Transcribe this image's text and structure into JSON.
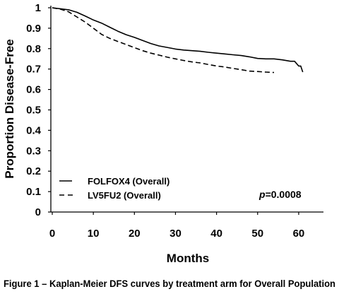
{
  "chart_data": {
    "type": "line",
    "xlabel": "Months",
    "ylabel": "Proportion Disease-Free",
    "xlim": [
      0,
      65
    ],
    "ylim": [
      0,
      1
    ],
    "x_ticks": [
      "0",
      "10",
      "20",
      "30",
      "40",
      "50",
      "60"
    ],
    "y_ticks": [
      "0",
      "0.1",
      "0.2",
      "0.3",
      "0.4",
      "0.5",
      "0.6",
      "0.7",
      "0.8",
      "0.9",
      "1"
    ],
    "grid": false,
    "legend_position": "bottom-left",
    "annotation": {
      "italic": "p",
      "text": "=0.0008"
    },
    "caption": "Figure 1 – Kaplan-Meier DFS curves by treatment arm for Overall Population",
    "series": [
      {
        "name": "FOLFOX4 (Overall)",
        "style": "solid",
        "color": "#000000",
        "x": [
          0,
          2,
          4,
          6,
          8,
          10,
          12,
          14,
          16,
          18,
          20,
          22,
          24,
          26,
          28,
          30,
          32,
          34,
          36,
          38,
          40,
          42,
          44,
          46,
          48,
          50,
          52,
          54,
          56,
          58,
          59,
          60,
          60.5,
          61
        ],
        "y": [
          1.0,
          0.995,
          0.99,
          0.978,
          0.96,
          0.94,
          0.925,
          0.905,
          0.885,
          0.868,
          0.855,
          0.84,
          0.825,
          0.813,
          0.806,
          0.798,
          0.793,
          0.79,
          0.787,
          0.782,
          0.778,
          0.774,
          0.77,
          0.766,
          0.76,
          0.752,
          0.75,
          0.75,
          0.745,
          0.738,
          0.738,
          0.715,
          0.715,
          0.685
        ]
      },
      {
        "name": "LV5FU2 (Overall)",
        "style": "dashed",
        "color": "#000000",
        "x": [
          0,
          2,
          4,
          6,
          8,
          10,
          12,
          14,
          16,
          18,
          20,
          22,
          24,
          26,
          28,
          30,
          32,
          34,
          36,
          38,
          40,
          42,
          44,
          46,
          48,
          50,
          52,
          54
        ],
        "y": [
          1.0,
          0.993,
          0.98,
          0.955,
          0.93,
          0.9,
          0.87,
          0.85,
          0.835,
          0.82,
          0.805,
          0.79,
          0.778,
          0.768,
          0.758,
          0.75,
          0.742,
          0.735,
          0.73,
          0.722,
          0.715,
          0.71,
          0.703,
          0.697,
          0.69,
          0.688,
          0.685,
          0.683
        ]
      }
    ]
  }
}
